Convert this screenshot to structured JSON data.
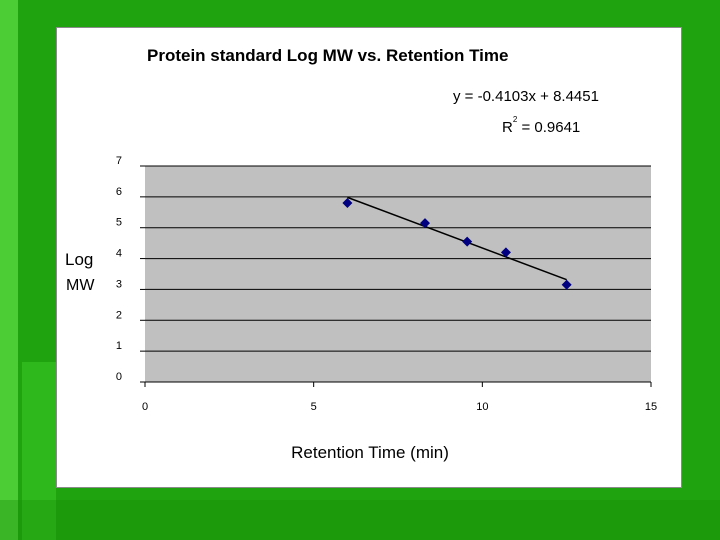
{
  "slide": {
    "background_color": "#1fa30f",
    "frame_color": "#ffffff"
  },
  "chart_data": {
    "type": "scatter",
    "title": "Protein standard Log MW vs.  Retention Time",
    "xlabel": "Retention Time (min)",
    "ylabel": "Log MW",
    "xlim": [
      0,
      15
    ],
    "ylim": [
      0,
      7
    ],
    "x_ticks": [
      0,
      5,
      10,
      15
    ],
    "y_ticks": [
      0,
      1,
      2,
      3,
      4,
      5,
      6,
      7
    ],
    "grid": true,
    "plot_area_color": "#c0c0c0",
    "marker_color": "#000080",
    "points": [
      {
        "x": 6.0,
        "y": 5.8
      },
      {
        "x": 8.3,
        "y": 5.15
      },
      {
        "x": 9.55,
        "y": 4.55
      },
      {
        "x": 10.7,
        "y": 4.2
      },
      {
        "x": 12.5,
        "y": 3.15
      }
    ],
    "trendline": {
      "type": "linear",
      "x_range": [
        6.0,
        12.5
      ],
      "slope": -0.4103,
      "intercept": 8.4451,
      "equation_label": "y = -0.4103x + 8.4451",
      "r2_label_prefix": "R",
      "r2_label_sup": "2",
      "r2_label_suffix": " = 0.9641"
    }
  }
}
